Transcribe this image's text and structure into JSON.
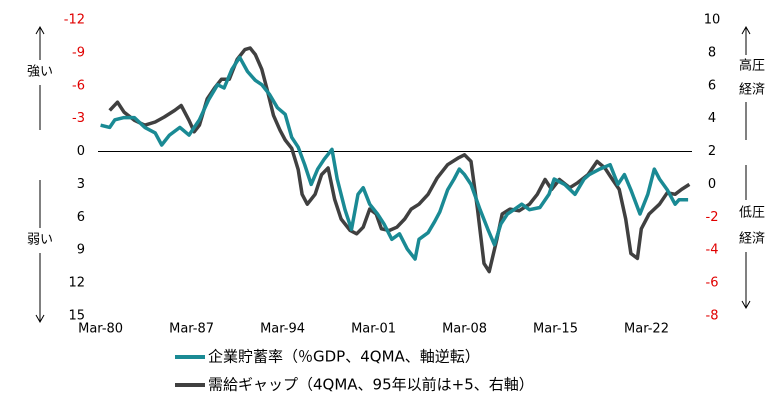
{
  "chart_data": {
    "type": "line",
    "annotations": {
      "left_up": "強い",
      "left_down": "弱い",
      "right_up": [
        "高圧",
        "経済"
      ],
      "right_down": [
        "低圧",
        "経済"
      ]
    },
    "xlim": [
      1979.8,
      2025.5
    ],
    "xticks": [
      {
        "value": 1980,
        "label": "Mar-80"
      },
      {
        "value": 1987,
        "label": "Mar-87"
      },
      {
        "value": 1994,
        "label": "Mar-94"
      },
      {
        "value": 2001,
        "label": "Mar-01"
      },
      {
        "value": 2008,
        "label": "Mar-08"
      },
      {
        "value": 2015,
        "label": "Mar-15"
      },
      {
        "value": 2022,
        "label": "Mar-22"
      }
    ],
    "ylim": [
      15,
      -12
    ],
    "yticks": [
      -12,
      -9,
      -6,
      -3,
      0,
      3,
      6,
      9,
      12,
      15
    ],
    "y2lim": [
      -8,
      10
    ],
    "y2ticks": [
      10,
      8,
      6,
      4,
      2,
      0,
      -2,
      -4,
      -6,
      -8
    ],
    "hline": 0,
    "negative_tick_color": "#e00000",
    "series": [
      {
        "name": "企業貯蓄率（％GDP、4QMA、軸逆転）",
        "color": "#1a8a94",
        "x": [
          1980.0,
          1980.7,
          1981.1,
          1981.8,
          1982.6,
          1983.4,
          1984.2,
          1984.7,
          1985.3,
          1986.1,
          1986.8,
          1987.6,
          1988.3,
          1989.0,
          1989.5,
          1990.1,
          1990.7,
          1991.3,
          1991.9,
          1992.4,
          1993.0,
          1993.6,
          1994.2,
          1994.7,
          1995.2,
          1995.7,
          1996.2,
          1996.7,
          1997.2,
          1997.8,
          1998.2,
          1998.8,
          1999.3,
          1999.8,
          2000.2,
          2000.7,
          2001.3,
          2001.8,
          2002.4,
          2003.0,
          2003.6,
          2004.2,
          2004.5,
          2005.2,
          2005.7,
          2006.1,
          2006.7,
          2007.2,
          2007.6,
          2008.0,
          2008.5,
          2009.2,
          2009.8,
          2010.3,
          2010.8,
          2011.3,
          2011.8,
          2012.4,
          2013.0,
          2013.8,
          2014.5,
          2014.9,
          2015.7,
          2016.5,
          2017.2,
          2017.6,
          2018.4,
          2019.2,
          2019.8,
          2020.3,
          2020.8,
          2021.5,
          2022.1,
          2022.6,
          2023.0,
          2023.6,
          2024.2,
          2024.5,
          2025.2
        ],
        "values": [
          -2.4,
          -2.2,
          -2.9,
          -3.1,
          -3.1,
          -2.2,
          -1.7,
          -0.6,
          -1.5,
          -2.2,
          -1.5,
          -2.9,
          -4.7,
          -6.1,
          -5.8,
          -7.5,
          -8.6,
          -7.3,
          -6.5,
          -6.1,
          -5.2,
          -4.0,
          -3.4,
          -1.3,
          -0.4,
          1.2,
          3.0,
          1.6,
          0.7,
          -0.2,
          2.5,
          5.3,
          7.1,
          3.9,
          3.3,
          4.8,
          5.7,
          6.6,
          8.0,
          7.5,
          8.9,
          9.8,
          8.0,
          7.4,
          6.4,
          5.5,
          3.5,
          2.5,
          1.6,
          2.1,
          3.0,
          5.3,
          7.1,
          8.5,
          6.6,
          5.7,
          5.3,
          4.8,
          5.3,
          5.1,
          3.9,
          2.5,
          3.0,
          3.9,
          2.5,
          2.1,
          1.6,
          1.2,
          3.0,
          2.1,
          3.5,
          5.7,
          3.9,
          1.6,
          2.5,
          3.5,
          4.8,
          4.4,
          4.4
        ]
      },
      {
        "name": "需給ギャップ（4QMA、95年以前は+5、右軸）",
        "color": "#404040",
        "axis": "y2",
        "x": [
          1980.7,
          1981.3,
          1981.8,
          1982.6,
          1983.4,
          1984.2,
          1984.9,
          1985.7,
          1986.2,
          1986.8,
          1987.2,
          1987.6,
          1988.2,
          1988.8,
          1989.3,
          1989.9,
          1990.5,
          1991.1,
          1991.5,
          1991.9,
          1992.4,
          1992.8,
          1993.3,
          1993.8,
          1994.2,
          1994.7,
          1995.2,
          1995.5,
          1995.9,
          1996.5,
          1997.0,
          1997.5,
          1998.0,
          1998.5,
          1999.2,
          1999.7,
          2000.2,
          2000.7,
          2001.2,
          2001.6,
          2002.2,
          2002.8,
          2003.4,
          2003.9,
          2004.5,
          2005.2,
          2005.9,
          2006.7,
          2007.5,
          2008.0,
          2008.5,
          2009.0,
          2009.5,
          2009.9,
          2010.5,
          2010.9,
          2011.5,
          2012.2,
          2013.0,
          2013.6,
          2014.2,
          2014.7,
          2015.3,
          2016.1,
          2016.7,
          2017.5,
          2018.2,
          2018.8,
          2019.3,
          2019.9,
          2020.4,
          2020.8,
          2021.3,
          2021.6,
          2022.2,
          2023.0,
          2023.6,
          2024.2,
          2024.7,
          2025.3
        ],
        "values": [
          4.5,
          5.0,
          4.4,
          3.9,
          3.6,
          3.8,
          4.1,
          4.5,
          4.8,
          3.9,
          3.2,
          3.6,
          5.2,
          5.9,
          6.4,
          6.4,
          7.6,
          8.2,
          8.3,
          7.9,
          7.0,
          5.8,
          4.2,
          3.3,
          2.7,
          2.2,
          0.9,
          -0.6,
          -1.2,
          -0.6,
          0.6,
          1.0,
          -0.9,
          -2.1,
          -2.8,
          -3.0,
          -2.6,
          -1.5,
          -1.8,
          -2.7,
          -2.8,
          -2.6,
          -2.1,
          -1.5,
          -1.2,
          -0.6,
          0.4,
          1.2,
          1.6,
          1.8,
          1.4,
          -1.5,
          -4.8,
          -5.3,
          -3.3,
          -1.8,
          -1.5,
          -1.6,
          -1.2,
          -0.6,
          0.3,
          -0.3,
          0.3,
          -0.2,
          0.1,
          0.6,
          1.4,
          1.0,
          0.4,
          -0.3,
          -2.1,
          -4.2,
          -4.5,
          -2.7,
          -1.8,
          -1.2,
          -0.5,
          -0.6,
          -0.3,
          0.0
        ]
      }
    ]
  }
}
